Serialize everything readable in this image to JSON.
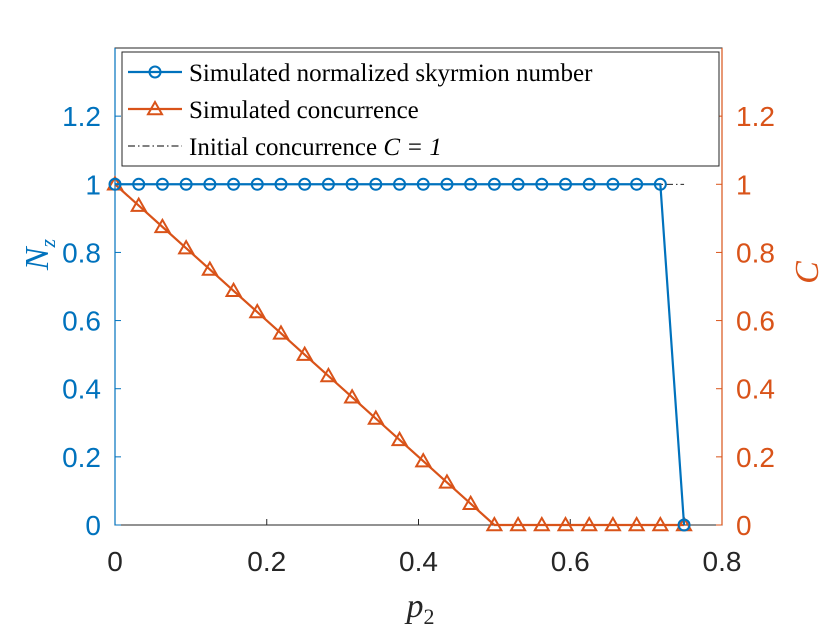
{
  "chart_data": {
    "type": "line",
    "xlabel": "p",
    "xlabel_sub": "2",
    "ylabel_left": "N",
    "ylabel_left_sub": "z",
    "ylabel_right": "C",
    "xlim": [
      0,
      0.8
    ],
    "ylim": [
      0,
      1.4
    ],
    "xticks": [
      "0",
      "0.2",
      "0.4",
      "0.6",
      "0.8"
    ],
    "yticks_left": [
      "0",
      "0.2",
      "0.4",
      "0.6",
      "0.8",
      "1",
      "1.2"
    ],
    "yticks_right": [
      "0",
      "0.2",
      "0.4",
      "0.6",
      "0.8",
      "1",
      "1.2"
    ],
    "colors": {
      "left": "#0072BD",
      "right": "#D95319",
      "reference": "#000000"
    },
    "series": [
      {
        "name": "Simulated normalized skyrmion number",
        "color": "#0072BD",
        "marker": "circle",
        "x": [
          0,
          0.03125,
          0.0625,
          0.09375,
          0.125,
          0.15625,
          0.1875,
          0.21875,
          0.25,
          0.28125,
          0.3125,
          0.34375,
          0.375,
          0.40625,
          0.4375,
          0.46875,
          0.5,
          0.53125,
          0.5625,
          0.59375,
          0.625,
          0.65625,
          0.6875,
          0.71875,
          0.75
        ],
        "y": [
          1,
          1,
          1,
          1,
          1,
          1,
          1,
          1,
          1,
          1,
          1,
          1,
          1,
          1,
          1,
          1,
          1,
          1,
          1,
          1,
          1,
          1,
          1,
          1,
          0
        ]
      },
      {
        "name": "Simulated concurrence",
        "color": "#D95319",
        "marker": "triangle",
        "x": [
          0,
          0.03125,
          0.0625,
          0.09375,
          0.125,
          0.15625,
          0.1875,
          0.21875,
          0.25,
          0.28125,
          0.3125,
          0.34375,
          0.375,
          0.40625,
          0.4375,
          0.46875,
          0.5,
          0.53125,
          0.5625,
          0.59375,
          0.625,
          0.65625,
          0.6875,
          0.71875,
          0.75
        ],
        "y": [
          1,
          0.9375,
          0.875,
          0.8125,
          0.75,
          0.6875,
          0.625,
          0.5625,
          0.5,
          0.4375,
          0.375,
          0.3125,
          0.25,
          0.1875,
          0.125,
          0.0625,
          0,
          0,
          0,
          0,
          0,
          0,
          0,
          0,
          0
        ]
      },
      {
        "name": "Initial concurrence C = 1",
        "legend_prefix": "Initial concurrence ",
        "legend_math": "C = 1",
        "color": "#000000",
        "marker": "none",
        "style": "dashdot",
        "x": [
          0,
          0.75
        ],
        "y": [
          1,
          1
        ]
      }
    ],
    "legend_position": "top-left"
  }
}
